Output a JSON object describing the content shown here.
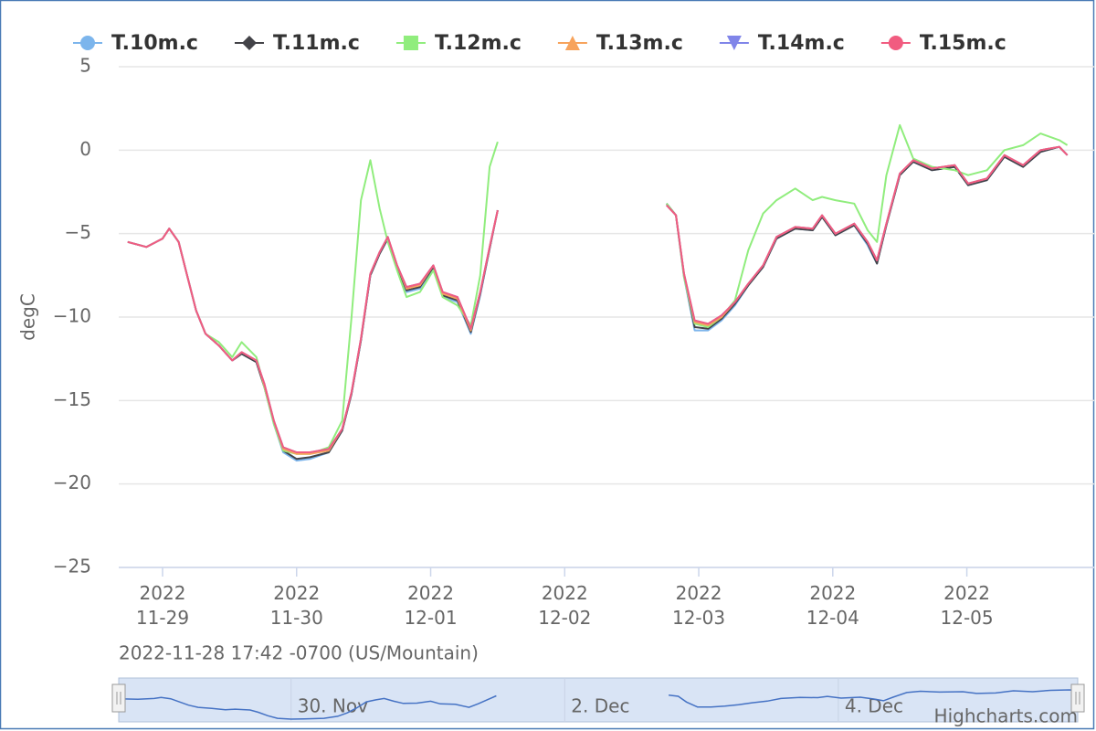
{
  "chart_data": {
    "type": "line",
    "y_label": "degC",
    "subtitle": "2022-11-28 17:42 -0700 (US/Mountain)",
    "credits": "Highcharts.com",
    "grid": true,
    "xlim": [
      0.673,
      7.95
    ],
    "ylim": [
      -25,
      5
    ],
    "yticks": [
      {
        "value": -25,
        "label": "−25"
      },
      {
        "value": -20,
        "label": "−20"
      },
      {
        "value": -15,
        "label": "−15"
      },
      {
        "value": -10,
        "label": "−10"
      },
      {
        "value": -5,
        "label": "−5"
      },
      0,
      5
    ],
    "xticks": [
      {
        "value": 1,
        "label": "2022\n11-29"
      },
      {
        "value": 2,
        "label": "2022\n11-30"
      },
      {
        "value": 3,
        "label": "2022\n12-01"
      },
      {
        "value": 4,
        "label": "2022\n12-02"
      },
      {
        "value": 5,
        "label": "2022\n12-03"
      },
      {
        "value": 6,
        "label": "2022\n12-04"
      },
      {
        "value": 7,
        "label": "2022\n12-05"
      }
    ],
    "x": [
      0.74,
      0.88,
      1.0,
      1.05,
      1.12,
      1.18,
      1.25,
      1.32,
      1.42,
      1.52,
      1.59,
      1.7,
      1.76,
      1.83,
      1.9,
      2.0,
      2.1,
      2.24,
      2.34,
      2.41,
      2.48,
      2.55,
      2.62,
      2.68,
      2.75,
      2.82,
      2.92,
      3.02,
      3.09,
      3.2,
      3.3,
      3.37,
      3.44,
      3.5,
      4.1,
      4.76,
      4.83,
      4.89,
      4.97,
      5.07,
      5.17,
      5.27,
      5.37,
      5.48,
      5.58,
      5.72,
      5.85,
      5.92,
      6.02,
      6.16,
      6.26,
      6.33,
      6.4,
      6.5,
      6.6,
      6.74,
      6.91,
      7.01,
      7.15,
      7.28,
      7.42,
      7.55,
      7.69,
      7.75
    ],
    "series": [
      {
        "name": "T.10m.c",
        "color": "#7cb5ec",
        "marker": "circle",
        "values": [
          -5.5,
          -5.8,
          -5.3,
          -4.7,
          -5.5,
          -7.4,
          -9.6,
          -11,
          -11.7,
          -12.6,
          -12.2,
          -12.7,
          -14.2,
          -16.4,
          -18.1,
          -18.6,
          -18.5,
          -18.1,
          -16.8,
          -14.6,
          -11.4,
          -7.5,
          -6.2,
          -5.3,
          -7.1,
          -8.5,
          -8.3,
          -7.1,
          -8.8,
          -9.1,
          -11,
          -8.7,
          -5.9,
          -3.6,
          null,
          -3.2,
          -3.9,
          -7.6,
          -10.8,
          -10.8,
          -10.2,
          -9.3,
          -8.1,
          -7,
          -5.3,
          -4.7,
          -4.8,
          -4,
          -5.1,
          -4.5,
          -5.7,
          -6.8,
          -4.5,
          -1.5,
          -0.7,
          -1.2,
          -1,
          -2.1,
          -1.8,
          -0.4,
          -1,
          -0.1,
          0.2,
          -0.3
        ]
      },
      {
        "name": "T.11m.c",
        "color": "#434348",
        "marker": "diamond",
        "values": [
          -5.5,
          -5.8,
          -5.3,
          -4.7,
          -5.5,
          -7.4,
          -9.6,
          -11,
          -11.7,
          -12.6,
          -12.2,
          -12.7,
          -14.2,
          -16.3,
          -18,
          -18.5,
          -18.4,
          -18.1,
          -16.8,
          -14.6,
          -11.4,
          -7.5,
          -6.2,
          -5.3,
          -7,
          -8.4,
          -8.2,
          -7,
          -8.7,
          -9,
          -10.9,
          -8.6,
          -5.9,
          -3.6,
          null,
          -3.2,
          -3.9,
          -7.5,
          -10.6,
          -10.7,
          -10.1,
          -9.2,
          -8.1,
          -7,
          -5.3,
          -4.7,
          -4.8,
          -4,
          -5.1,
          -4.5,
          -5.6,
          -6.8,
          -4.5,
          -1.5,
          -0.7,
          -1.2,
          -1,
          -2.1,
          -1.8,
          -0.4,
          -1,
          -0.1,
          0.2,
          -0.3
        ]
      },
      {
        "name": "T.12m.c",
        "color": "#90ed7d",
        "marker": "square",
        "values": [
          -5.5,
          -5.8,
          -5.3,
          -4.7,
          -5.5,
          -7.4,
          -9.6,
          -11,
          -11.5,
          -12.4,
          -11.5,
          -12.4,
          -14.2,
          -16.4,
          -18,
          -18.2,
          -18.2,
          -17.8,
          -16.2,
          -10,
          -3,
          -0.6,
          -3.5,
          -5.5,
          -7.2,
          -8.8,
          -8.5,
          -7.2,
          -8.8,
          -9.3,
          -10.5,
          -7.5,
          -1,
          0.5,
          null,
          -3.2,
          -3.9,
          -7.6,
          -10.4,
          -10.6,
          -10,
          -9,
          -6,
          -3.8,
          -3,
          -2.3,
          -3,
          -2.8,
          -3,
          -3.2,
          -4.8,
          -5.5,
          -1.5,
          1.5,
          -0.5,
          -1,
          -1.2,
          -1.5,
          -1.2,
          0,
          0.3,
          1,
          0.6,
          0.3
        ]
      },
      {
        "name": "T.13m.c",
        "color": "#f7a35c",
        "marker": "triangle",
        "values": [
          -5.5,
          -5.8,
          -5.3,
          -4.7,
          -5.5,
          -7.4,
          -9.6,
          -11,
          -11.7,
          -12.6,
          -12.1,
          -12.6,
          -14.1,
          -16.2,
          -17.9,
          -18.2,
          -18.2,
          -18,
          -16.7,
          -14.5,
          -11.3,
          -7.4,
          -6.1,
          -5.2,
          -6.9,
          -8.3,
          -8.1,
          -6.9,
          -8.6,
          -8.9,
          -10.8,
          -8.5,
          -5.8,
          -3.6,
          null,
          -3.3,
          -3.9,
          -7.4,
          -10.3,
          -10.5,
          -10,
          -9.1,
          -8,
          -6.9,
          -5.2,
          -4.6,
          -4.7,
          -3.9,
          -5,
          -4.4,
          -5.5,
          -6.6,
          -4.4,
          -1.4,
          -0.6,
          -1.1,
          -0.9,
          -2,
          -1.7,
          -0.3,
          -0.9,
          0,
          0.2,
          -0.3
        ]
      },
      {
        "name": "T.14m.c",
        "color": "#8085e9",
        "marker": "triangle-down",
        "values": [
          -5.5,
          -5.8,
          -5.3,
          -4.7,
          -5.5,
          -7.4,
          -9.6,
          -11,
          -11.7,
          -12.6,
          -12.1,
          -12.6,
          -14,
          -16.2,
          -17.8,
          -18.1,
          -18.1,
          -17.9,
          -16.7,
          -14.5,
          -11.3,
          -7.4,
          -6.1,
          -5.2,
          -6.9,
          -8.2,
          -8,
          -6.9,
          -8.5,
          -8.8,
          -10.7,
          -8.5,
          -5.8,
          -3.6,
          null,
          -3.3,
          -3.9,
          -7.4,
          -10.2,
          -10.4,
          -9.9,
          -9.1,
          -8,
          -6.9,
          -5.2,
          -4.6,
          -4.7,
          -3.9,
          -5,
          -4.4,
          -5.5,
          -6.6,
          -4.4,
          -1.4,
          -0.6,
          -1.1,
          -0.9,
          -2,
          -1.7,
          -0.3,
          -0.9,
          0,
          0.2,
          -0.3
        ]
      },
      {
        "name": "T.15m.c",
        "color": "#f15c80",
        "marker": "circle",
        "values": [
          -5.5,
          -5.8,
          -5.3,
          -4.7,
          -5.5,
          -7.4,
          -9.6,
          -11,
          -11.7,
          -12.6,
          -12.1,
          -12.6,
          -14,
          -16.2,
          -17.8,
          -18.1,
          -18.1,
          -17.9,
          -16.7,
          -14.5,
          -11.3,
          -7.4,
          -6.1,
          -5.2,
          -6.9,
          -8.2,
          -8,
          -6.9,
          -8.5,
          -8.8,
          -10.7,
          -8.5,
          -5.8,
          -3.6,
          null,
          -3.3,
          -3.9,
          -7.4,
          -10.2,
          -10.4,
          -9.9,
          -9.1,
          -8,
          -6.9,
          -5.2,
          -4.6,
          -4.7,
          -3.9,
          -5,
          -4.4,
          -5.5,
          -6.6,
          -4.4,
          -1.4,
          -0.6,
          -1.1,
          -0.9,
          -2,
          -1.7,
          -0.3,
          -0.9,
          0,
          0.2,
          -0.3
        ]
      }
    ],
    "navigator": {
      "series": 0,
      "color": "#4572c4",
      "xticks": [
        {
          "value": 2,
          "label": "30. Nov"
        },
        {
          "value": 4,
          "label": "2. Dec"
        },
        {
          "value": 6,
          "label": "4. Dec"
        }
      ]
    }
  }
}
